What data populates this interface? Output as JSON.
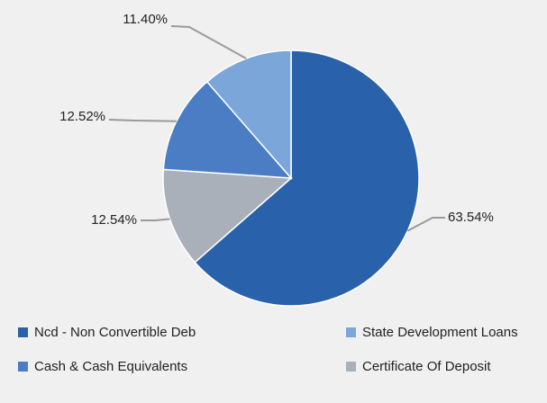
{
  "chart_data": {
    "type": "pie",
    "categories": [
      "Ncd - Non Convertible Deb",
      "Certificate Of Deposit",
      "Cash & Cash Equivalents",
      "State Development Loans"
    ],
    "values": [
      63.54,
      12.54,
      12.52,
      11.4
    ],
    "value_labels": [
      "63.54%",
      "12.54%",
      "12.52%",
      "11.40%"
    ],
    "colors": [
      "#2962ab",
      "#a9b0b9",
      "#4a7dc4",
      "#7ba6da"
    ],
    "legend": "bottom"
  }
}
